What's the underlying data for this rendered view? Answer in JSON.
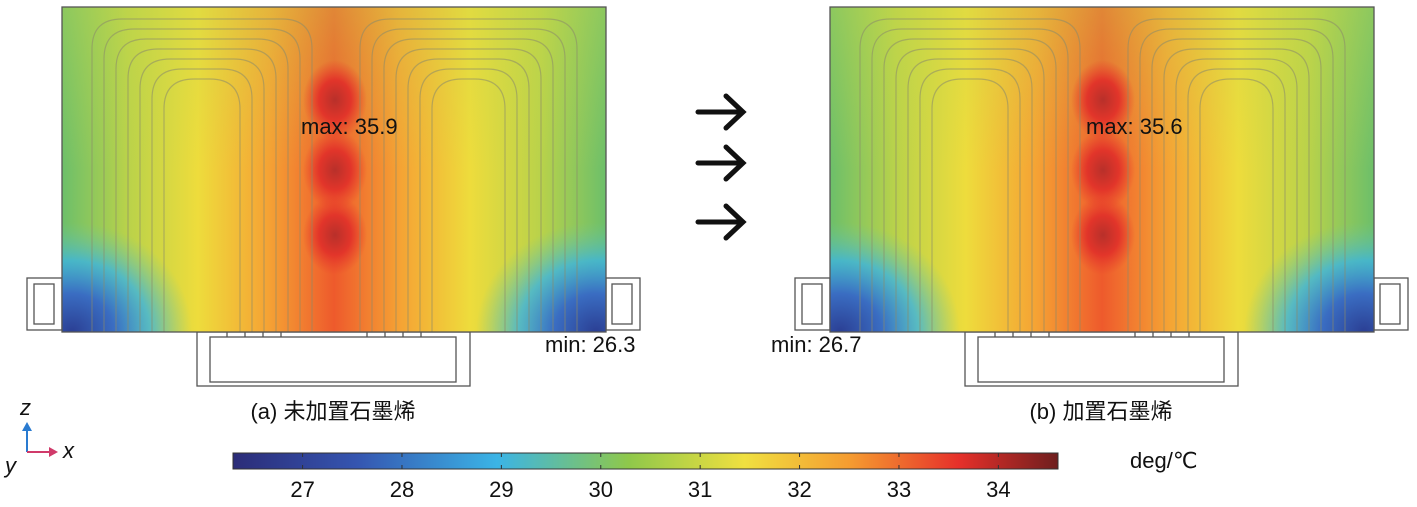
{
  "panels": [
    {
      "max_label": "max: 35.9",
      "min_label": "min: 26.3",
      "caption": "(a) 未加置石墨烯"
    },
    {
      "max_label": "max: 35.6",
      "min_label": "min: 26.7",
      "caption": "(b) 加置石墨烯"
    }
  ],
  "colorbar": {
    "unit": "deg/℃",
    "range": [
      26.3,
      34.6
    ],
    "ticks": [
      27,
      28,
      29,
      30,
      31,
      32,
      33,
      34
    ]
  },
  "axes": {
    "z": "z",
    "x": "x",
    "y": "y"
  }
}
